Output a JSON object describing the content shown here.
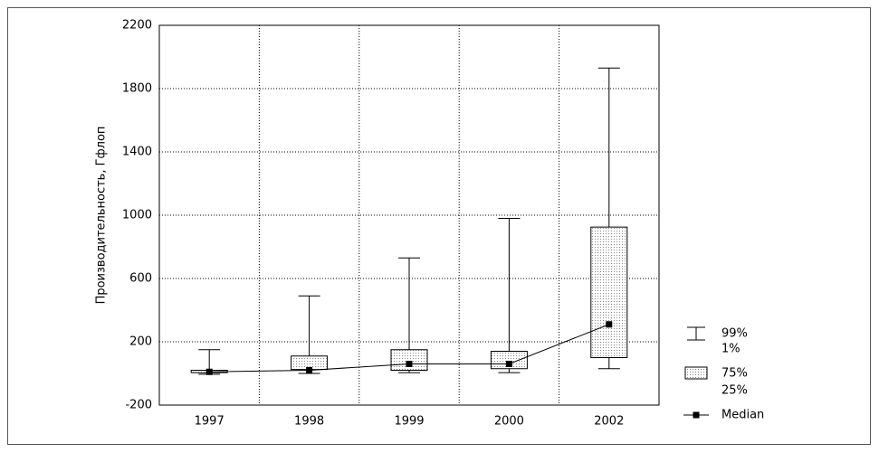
{
  "chart_data": {
    "type": "box",
    "y_label": "Производительность, Гфлоп",
    "categories": [
      "1997",
      "1998",
      "1999",
      "2000",
      "2002"
    ],
    "min": [
      -5,
      0,
      5,
      5,
      30
    ],
    "q1": [
      5,
      25,
      20,
      30,
      100
    ],
    "median": [
      10,
      20,
      60,
      60,
      310
    ],
    "q3": [
      20,
      110,
      150,
      140,
      925
    ],
    "max": [
      150,
      490,
      730,
      980,
      1930
    ],
    "ylim": [
      -200,
      2200
    ],
    "yticks": [
      -200,
      200,
      600,
      1000,
      1400,
      1800,
      2200
    ],
    "grid": true,
    "color": "#000000",
    "box_fill": "#c8c8c8",
    "legend": {
      "whisker": [
        "99%",
        "1%"
      ],
      "box": [
        "75%",
        "25%"
      ],
      "median": "Median"
    }
  }
}
